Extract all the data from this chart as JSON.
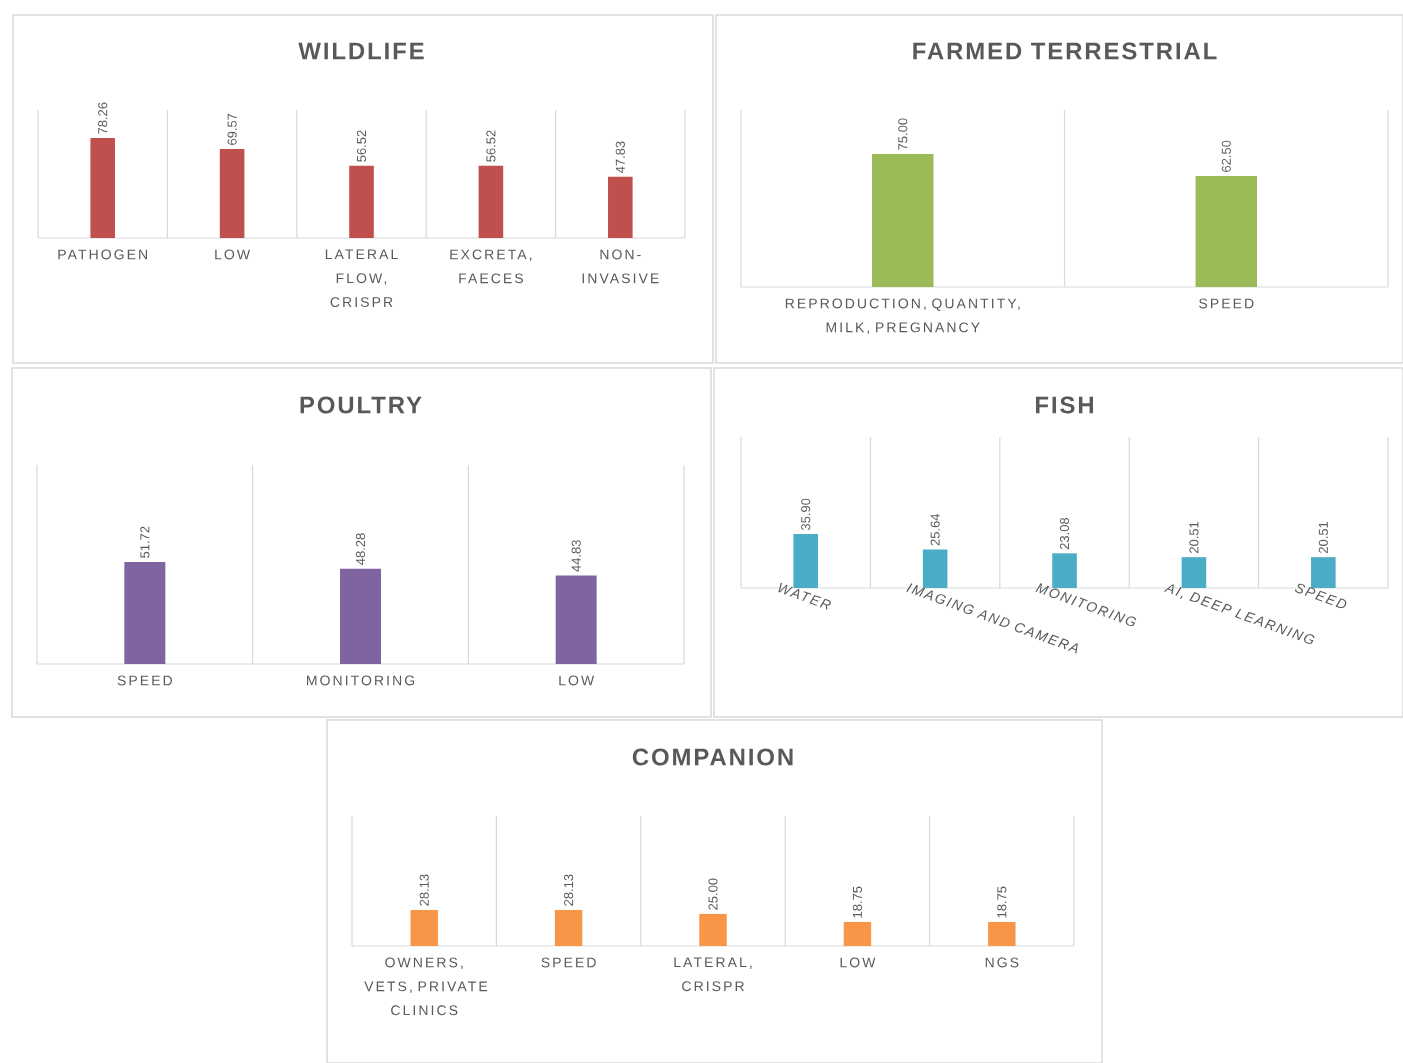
{
  "chart_data": [
    {
      "type": "bar",
      "title": "WILDLIFE",
      "categories": [
        "PATHOGEN",
        "LOW",
        "LATERAL FLOW, CRISPR",
        "EXCRETA, FAECES",
        "NON-INVASIVE"
      ],
      "values": [
        78.26,
        69.57,
        56.52,
        56.52,
        47.83
      ],
      "value_labels": [
        "78.26",
        "69.57",
        "56.52",
        "56.52",
        "47.83"
      ],
      "color": "#c0504d"
    },
    {
      "type": "bar",
      "title": "FARMED TERRESTRIAL",
      "categories": [
        "REPRODUCTION, QUANTITY, MILK, PREGNANCY",
        "SPEED"
      ],
      "values": [
        75.0,
        62.5
      ],
      "value_labels": [
        "75.00",
        "62.50"
      ],
      "color": "#9bbb59"
    },
    {
      "type": "bar",
      "title": "POULTRY",
      "categories": [
        "SPEED",
        "MONITORING",
        "LOW"
      ],
      "values": [
        51.72,
        48.28,
        44.83
      ],
      "value_labels": [
        "51.72",
        "48.28",
        "44.83"
      ],
      "color": "#8064a2"
    },
    {
      "type": "bar",
      "title": "FISH",
      "categories": [
        "WATER",
        "IMAGING AND CAMERA",
        "MONITORING",
        "AI, DEEP LEARNING",
        "SPEED"
      ],
      "values": [
        35.9,
        25.64,
        23.08,
        20.51,
        20.51
      ],
      "value_labels": [
        "35.90",
        "25.64",
        "23.08",
        "20.51",
        "20.51"
      ],
      "color": "#4bacc6"
    },
    {
      "type": "bar",
      "title": "COMPANION",
      "categories": [
        "OWNERS, VETS, PRIVATE CLINICS",
        "SPEED",
        "LATERAL, CRISPR",
        "LOW",
        "NGS"
      ],
      "values": [
        28.13,
        28.13,
        25.0,
        18.75,
        18.75
      ],
      "value_labels": [
        "28.13",
        "28.13",
        "25.00",
        "18.75",
        "18.75"
      ],
      "color": "#f79646"
    }
  ]
}
